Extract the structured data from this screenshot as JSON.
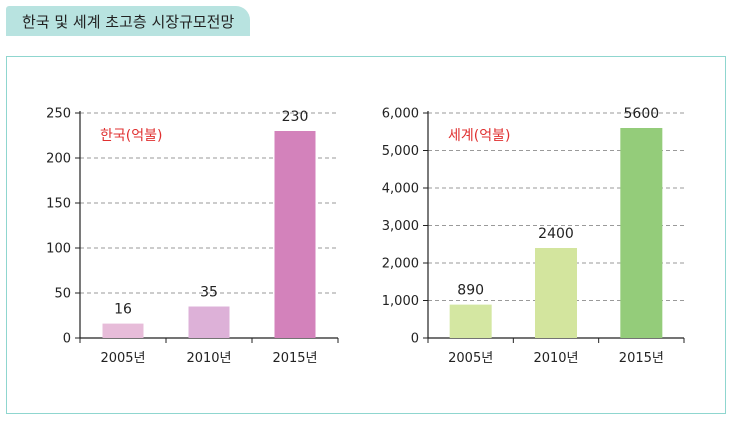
{
  "page": {
    "title": "한국 및 세계 초고층 시장규모전망"
  },
  "colors": {
    "tab_bg": "#b8e3e0",
    "frame_border": "#8fd6cf",
    "unit_label": "#e03030"
  },
  "chart_data": [
    {
      "type": "bar",
      "unit_label": "한국(억불)",
      "categories": [
        "2005년",
        "2010년",
        "2015년"
      ],
      "values": [
        16,
        35,
        230
      ],
      "data_labels": [
        "16",
        "35",
        "230"
      ],
      "ylim": [
        0,
        250
      ],
      "yticks": [
        0,
        50,
        100,
        150,
        200,
        250
      ],
      "ytick_labels": [
        "0",
        "50",
        "100",
        "150",
        "200",
        "250"
      ],
      "colors": [
        "#e7bcd9",
        "#ddb1d8",
        "#d382bb"
      ],
      "grid": true
    },
    {
      "type": "bar",
      "unit_label": "세계(억불)",
      "categories": [
        "2005년",
        "2010년",
        "2015년"
      ],
      "values": [
        890,
        2400,
        5600
      ],
      "data_labels": [
        "890",
        "2400",
        "5600"
      ],
      "ylim": [
        0,
        6000
      ],
      "yticks": [
        0,
        1000,
        2000,
        3000,
        4000,
        5000,
        6000
      ],
      "ytick_labels": [
        "0",
        "1,000",
        "2,000",
        "3,000",
        "4,000",
        "5,000",
        "6,000"
      ],
      "colors": [
        "#d4e7a2",
        "#d3e59e",
        "#94cc7a"
      ],
      "grid": true
    }
  ]
}
